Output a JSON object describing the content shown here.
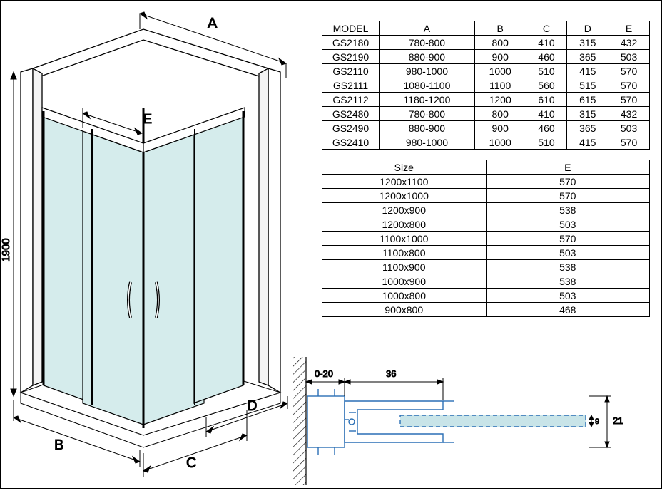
{
  "diagram": {
    "type": "isometric-technical-drawing",
    "height_label": "1900",
    "dim_labels": {
      "A": "A",
      "B": "B",
      "C": "C",
      "D": "D",
      "E": "E"
    },
    "glass_fill": "#d5ecec",
    "wall_fill": "#ffffff",
    "outline_color": "#000000",
    "dim_color": "#000000",
    "font_size": 18
  },
  "model_table": {
    "columns": [
      "MODEL",
      "A",
      "B",
      "C",
      "D",
      "E"
    ],
    "rows": [
      [
        "GS2180",
        "780-800",
        "800",
        "410",
        "315",
        "432"
      ],
      [
        "GS2190",
        "880-900",
        "900",
        "460",
        "365",
        "503"
      ],
      [
        "GS2110",
        "980-1000",
        "1000",
        "510",
        "415",
        "570"
      ],
      [
        "GS2111",
        "1080-1100",
        "1100",
        "560",
        "515",
        "570"
      ],
      [
        "GS2112",
        "1180-1200",
        "1200",
        "610",
        "615",
        "570"
      ],
      [
        "GS2480",
        "780-800",
        "800",
        "410",
        "315",
        "432"
      ],
      [
        "GS2490",
        "880-900",
        "900",
        "460",
        "365",
        "503"
      ],
      [
        "GS2410",
        "980-1000",
        "1000",
        "510",
        "415",
        "570"
      ]
    ]
  },
  "size_table": {
    "columns": [
      "Size",
      "E"
    ],
    "rows": [
      [
        "1200x1100",
        "570"
      ],
      [
        "1200x1000",
        "570"
      ],
      [
        "1200x900",
        "538"
      ],
      [
        "1200x800",
        "503"
      ],
      [
        "1100x1000",
        "570"
      ],
      [
        "1100x800",
        "503"
      ],
      [
        "1100x900",
        "538"
      ],
      [
        "1000x900",
        "538"
      ],
      [
        "1000x800",
        "503"
      ],
      [
        "900x800",
        "468"
      ]
    ]
  },
  "detail": {
    "type": "profile-cross-section",
    "labels": {
      "gap": "0-20",
      "width": "36",
      "depth": "21",
      "inner": "9"
    },
    "profile_color": "#2a6fb5",
    "glass_fill": "#c8e4e8",
    "hatch_color": "#000000"
  }
}
